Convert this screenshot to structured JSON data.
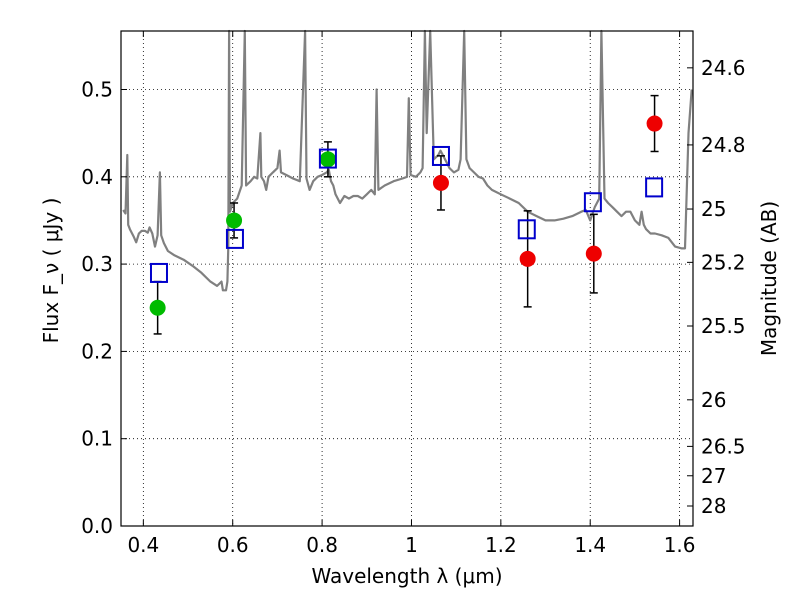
{
  "chart_data": {
    "type": "scatter",
    "xlabel": "Wavelength  λ (μm)",
    "ylabel": "Flux  F_ν  ( μJy )",
    "ylabel_right": "Magnitude (AB)",
    "xlim": [
      0.35,
      1.63
    ],
    "ylim": [
      0.0,
      0.567
    ],
    "grid": true,
    "x_ticks": [
      0.4,
      0.6,
      0.8,
      1.0,
      1.2,
      1.4,
      1.6
    ],
    "x_tick_labels": [
      "0.4",
      "0.6",
      "0.8",
      "1",
      "1.2",
      "1.4",
      "1.6"
    ],
    "y_ticks": [
      0.0,
      0.1,
      0.2,
      0.3,
      0.4,
      0.5
    ],
    "y_tick_labels": [
      "0.0",
      "0.1",
      "0.2",
      "0.3",
      "0.4",
      "0.5"
    ],
    "mag_ticks": [
      24.6,
      24.8,
      25,
      25.2,
      25.5,
      26,
      26.5,
      27,
      28
    ],
    "mag_tick_labels": [
      "24.6",
      "24.8",
      "25",
      "25.2",
      "25.5",
      "26",
      "26.5",
      "27",
      "28"
    ],
    "colors": {
      "template": "#808080",
      "green": "#00bb00",
      "red": "#ee0000",
      "blue": "#0000cc"
    },
    "template_spectrum": [
      [
        0.355,
        0.362
      ],
      [
        0.36,
        0.358
      ],
      [
        0.364,
        0.425
      ],
      [
        0.366,
        0.345
      ],
      [
        0.37,
        0.34
      ],
      [
        0.378,
        0.332
      ],
      [
        0.384,
        0.325
      ],
      [
        0.39,
        0.335
      ],
      [
        0.396,
        0.338
      ],
      [
        0.404,
        0.338
      ],
      [
        0.41,
        0.336
      ],
      [
        0.414,
        0.342
      ],
      [
        0.42,
        0.335
      ],
      [
        0.426,
        0.32
      ],
      [
        0.432,
        0.333
      ],
      [
        0.437,
        0.405
      ],
      [
        0.44,
        0.333
      ],
      [
        0.446,
        0.324
      ],
      [
        0.455,
        0.315
      ],
      [
        0.47,
        0.31
      ],
      [
        0.49,
        0.305
      ],
      [
        0.51,
        0.298
      ],
      [
        0.53,
        0.29
      ],
      [
        0.55,
        0.28
      ],
      [
        0.565,
        0.275
      ],
      [
        0.575,
        0.28
      ],
      [
        0.578,
        0.27
      ],
      [
        0.585,
        0.27
      ],
      [
        0.588,
        0.28
      ],
      [
        0.59,
        0.32
      ],
      [
        0.592,
        0.567
      ],
      [
        0.594,
        0.36
      ],
      [
        0.6,
        0.37
      ],
      [
        0.61,
        0.375
      ],
      [
        0.62,
        0.39
      ],
      [
        0.627,
        0.567
      ],
      [
        0.63,
        0.39
      ],
      [
        0.64,
        0.395
      ],
      [
        0.648,
        0.4
      ],
      [
        0.655,
        0.398
      ],
      [
        0.662,
        0.45
      ],
      [
        0.664,
        0.4
      ],
      [
        0.67,
        0.395
      ],
      [
        0.675,
        0.385
      ],
      [
        0.68,
        0.4
      ],
      [
        0.69,
        0.405
      ],
      [
        0.7,
        0.41
      ],
      [
        0.705,
        0.43
      ],
      [
        0.708,
        0.405
      ],
      [
        0.72,
        0.402
      ],
      [
        0.735,
        0.398
      ],
      [
        0.75,
        0.395
      ],
      [
        0.762,
        0.567
      ],
      [
        0.765,
        0.398
      ],
      [
        0.772,
        0.385
      ],
      [
        0.78,
        0.395
      ],
      [
        0.79,
        0.4
      ],
      [
        0.8,
        0.402
      ],
      [
        0.81,
        0.405
      ],
      [
        0.815,
        0.408
      ],
      [
        0.82,
        0.395
      ],
      [
        0.825,
        0.39
      ],
      [
        0.83,
        0.38
      ],
      [
        0.84,
        0.37
      ],
      [
        0.85,
        0.378
      ],
      [
        0.86,
        0.375
      ],
      [
        0.87,
        0.378
      ],
      [
        0.88,
        0.378
      ],
      [
        0.89,
        0.375
      ],
      [
        0.9,
        0.38
      ],
      [
        0.91,
        0.385
      ],
      [
        0.918,
        0.38
      ],
      [
        0.922,
        0.5
      ],
      [
        0.926,
        0.385
      ],
      [
        0.94,
        0.39
      ],
      [
        0.96,
        0.395
      ],
      [
        0.98,
        0.398
      ],
      [
        0.99,
        0.4
      ],
      [
        0.994,
        0.49
      ],
      [
        0.998,
        0.402
      ],
      [
        1.01,
        0.4
      ],
      [
        1.02,
        0.405
      ],
      [
        1.025,
        0.41
      ],
      [
        1.03,
        0.567
      ],
      [
        1.034,
        0.45
      ],
      [
        1.042,
        0.567
      ],
      [
        1.05,
        0.42
      ],
      [
        1.06,
        0.425
      ],
      [
        1.065,
        0.43
      ],
      [
        1.075,
        0.42
      ],
      [
        1.085,
        0.41
      ],
      [
        1.095,
        0.405
      ],
      [
        1.105,
        0.408
      ],
      [
        1.11,
        0.42
      ],
      [
        1.118,
        0.567
      ],
      [
        1.123,
        0.42
      ],
      [
        1.13,
        0.41
      ],
      [
        1.14,
        0.405
      ],
      [
        1.15,
        0.4
      ],
      [
        1.16,
        0.398
      ],
      [
        1.17,
        0.39
      ],
      [
        1.18,
        0.385
      ],
      [
        1.2,
        0.38
      ],
      [
        1.22,
        0.375
      ],
      [
        1.24,
        0.37
      ],
      [
        1.26,
        0.36
      ],
      [
        1.28,
        0.355
      ],
      [
        1.3,
        0.35
      ],
      [
        1.32,
        0.35
      ],
      [
        1.34,
        0.352
      ],
      [
        1.36,
        0.355
      ],
      [
        1.38,
        0.36
      ],
      [
        1.39,
        0.362
      ],
      [
        1.4,
        0.35
      ],
      [
        1.41,
        0.365
      ],
      [
        1.42,
        0.375
      ],
      [
        1.425,
        0.567
      ],
      [
        1.432,
        0.375
      ],
      [
        1.44,
        0.37
      ],
      [
        1.45,
        0.365
      ],
      [
        1.46,
        0.36
      ],
      [
        1.47,
        0.355
      ],
      [
        1.48,
        0.36
      ],
      [
        1.49,
        0.36
      ],
      [
        1.5,
        0.35
      ],
      [
        1.51,
        0.345
      ],
      [
        1.515,
        0.36
      ],
      [
        1.52,
        0.345
      ],
      [
        1.525,
        0.34
      ],
      [
        1.535,
        0.335
      ],
      [
        1.545,
        0.335
      ],
      [
        1.56,
        0.333
      ],
      [
        1.575,
        0.33
      ],
      [
        1.59,
        0.32
      ],
      [
        1.605,
        0.318
      ],
      [
        1.612,
        0.318
      ],
      [
        1.62,
        0.45
      ],
      [
        1.627,
        0.5
      ]
    ],
    "series": [
      {
        "name": "green-points",
        "marker": "circle",
        "color": "#00bb00",
        "points": [
          {
            "x": 0.432,
            "y": 0.25,
            "yerr_lo": 0.22,
            "yerr_hi": 0.28
          },
          {
            "x": 0.603,
            "y": 0.35,
            "yerr_lo": 0.33,
            "yerr_hi": 0.37
          },
          {
            "x": 0.813,
            "y": 0.42,
            "yerr_lo": 0.4,
            "yerr_hi": 0.44
          }
        ]
      },
      {
        "name": "red-points",
        "marker": "circle",
        "color": "#ee0000",
        "points": [
          {
            "x": 1.066,
            "y": 0.393,
            "yerr_lo": 0.362,
            "yerr_hi": 0.424
          },
          {
            "x": 1.26,
            "y": 0.306,
            "yerr_lo": 0.251,
            "yerr_hi": 0.361
          },
          {
            "x": 1.408,
            "y": 0.312,
            "yerr_lo": 0.267,
            "yerr_hi": 0.357
          },
          {
            "x": 1.544,
            "y": 0.461,
            "yerr_lo": 0.429,
            "yerr_hi": 0.493
          }
        ]
      },
      {
        "name": "blue-model-points",
        "marker": "square",
        "color": "#0000cc",
        "points": [
          {
            "x": 0.435,
            "y": 0.291
          },
          {
            "x": 0.605,
            "y": 0.33
          },
          {
            "x": 0.813,
            "y": 0.422
          },
          {
            "x": 1.066,
            "y": 0.425
          },
          {
            "x": 1.258,
            "y": 0.341
          },
          {
            "x": 1.406,
            "y": 0.372
          },
          {
            "x": 1.543,
            "y": 0.389
          }
        ]
      }
    ]
  }
}
